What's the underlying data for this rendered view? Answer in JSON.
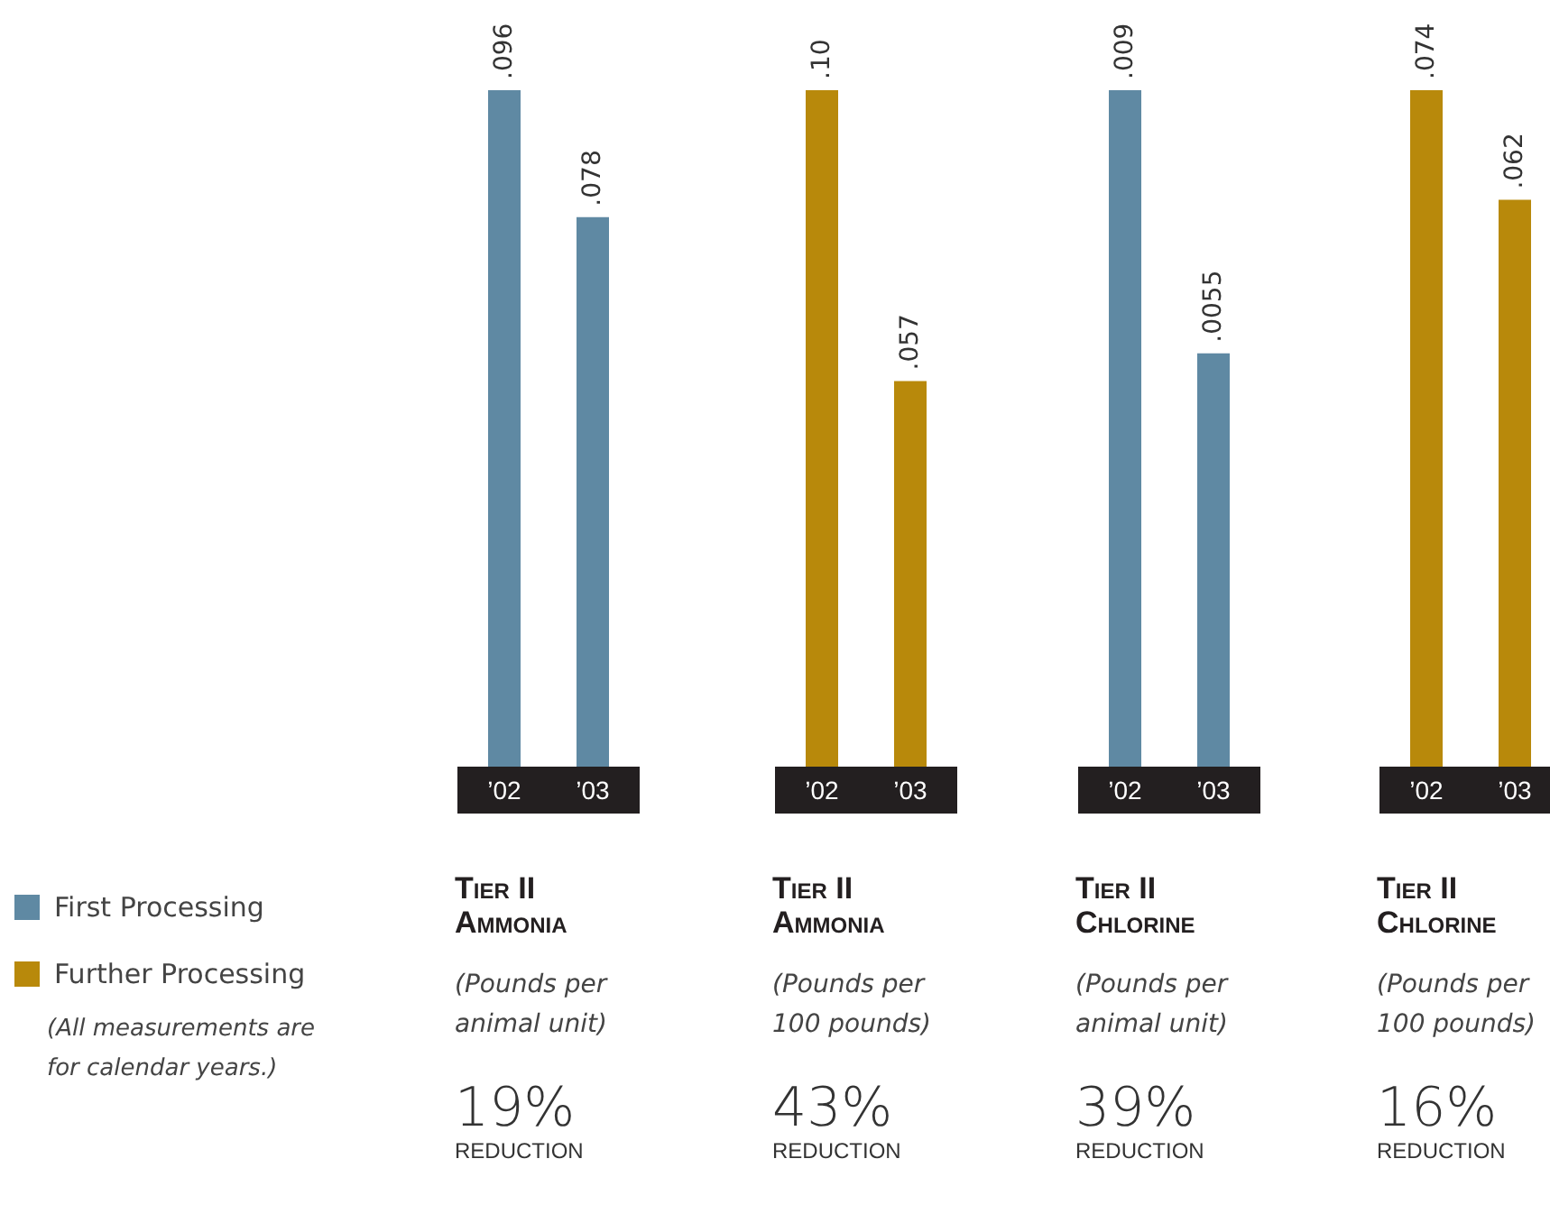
{
  "chart_data": [
    {
      "type": "bar",
      "title": "Tier II Ammonia",
      "subtitle": "(Pounds per animal unit)",
      "categories": [
        "’02",
        "’03"
      ],
      "series": [
        {
          "name": "First Processing",
          "color": "#5f89a3",
          "values": [
            0.096,
            0.078
          ],
          "value_labels": [
            ".096",
            ".078"
          ]
        }
      ],
      "grid": false,
      "legend": "left",
      "annotations": [
        "19%",
        "REDUCTION",
        "(All measurements are for calendar years.)"
      ]
    },
    {
      "type": "bar",
      "title": "Tier II Ammonia",
      "subtitle": "(Pounds per 100 pounds)",
      "categories": [
        "’02",
        "’03"
      ],
      "series": [
        {
          "name": "Further Processing",
          "color": "#b8890b",
          "values": [
            0.1,
            0.057
          ],
          "value_labels": [
            ".10",
            ".057"
          ]
        }
      ],
      "grid": false,
      "legend": "left",
      "annotations": [
        "43%",
        "REDUCTION"
      ]
    },
    {
      "type": "bar",
      "title": "Tier II Chlorine",
      "subtitle": "(Pounds per animal unit)",
      "categories": [
        "’02",
        "’03"
      ],
      "series": [
        {
          "color": "#5f89a3",
          "values": [
            0.009,
            0.0055
          ],
          "value_labels": [
            ".009",
            ".0055"
          ]
        }
      ],
      "grid": false,
      "annotations": [
        "39%",
        "REDUCTION"
      ]
    },
    {
      "type": "bar",
      "title": "Tier II Chlorine",
      "subtitle": "(Pounds per 100 pounds)",
      "categories": [
        "’02",
        "’03"
      ],
      "series": [
        {
          "color": "#b8890b",
          "values": [
            0.074,
            0.062
          ],
          "value_labels": [
            ".074",
            ".062"
          ]
        }
      ],
      "grid": false,
      "annotations": [
        "16%",
        "REDUCTION"
      ]
    }
  ]
}
